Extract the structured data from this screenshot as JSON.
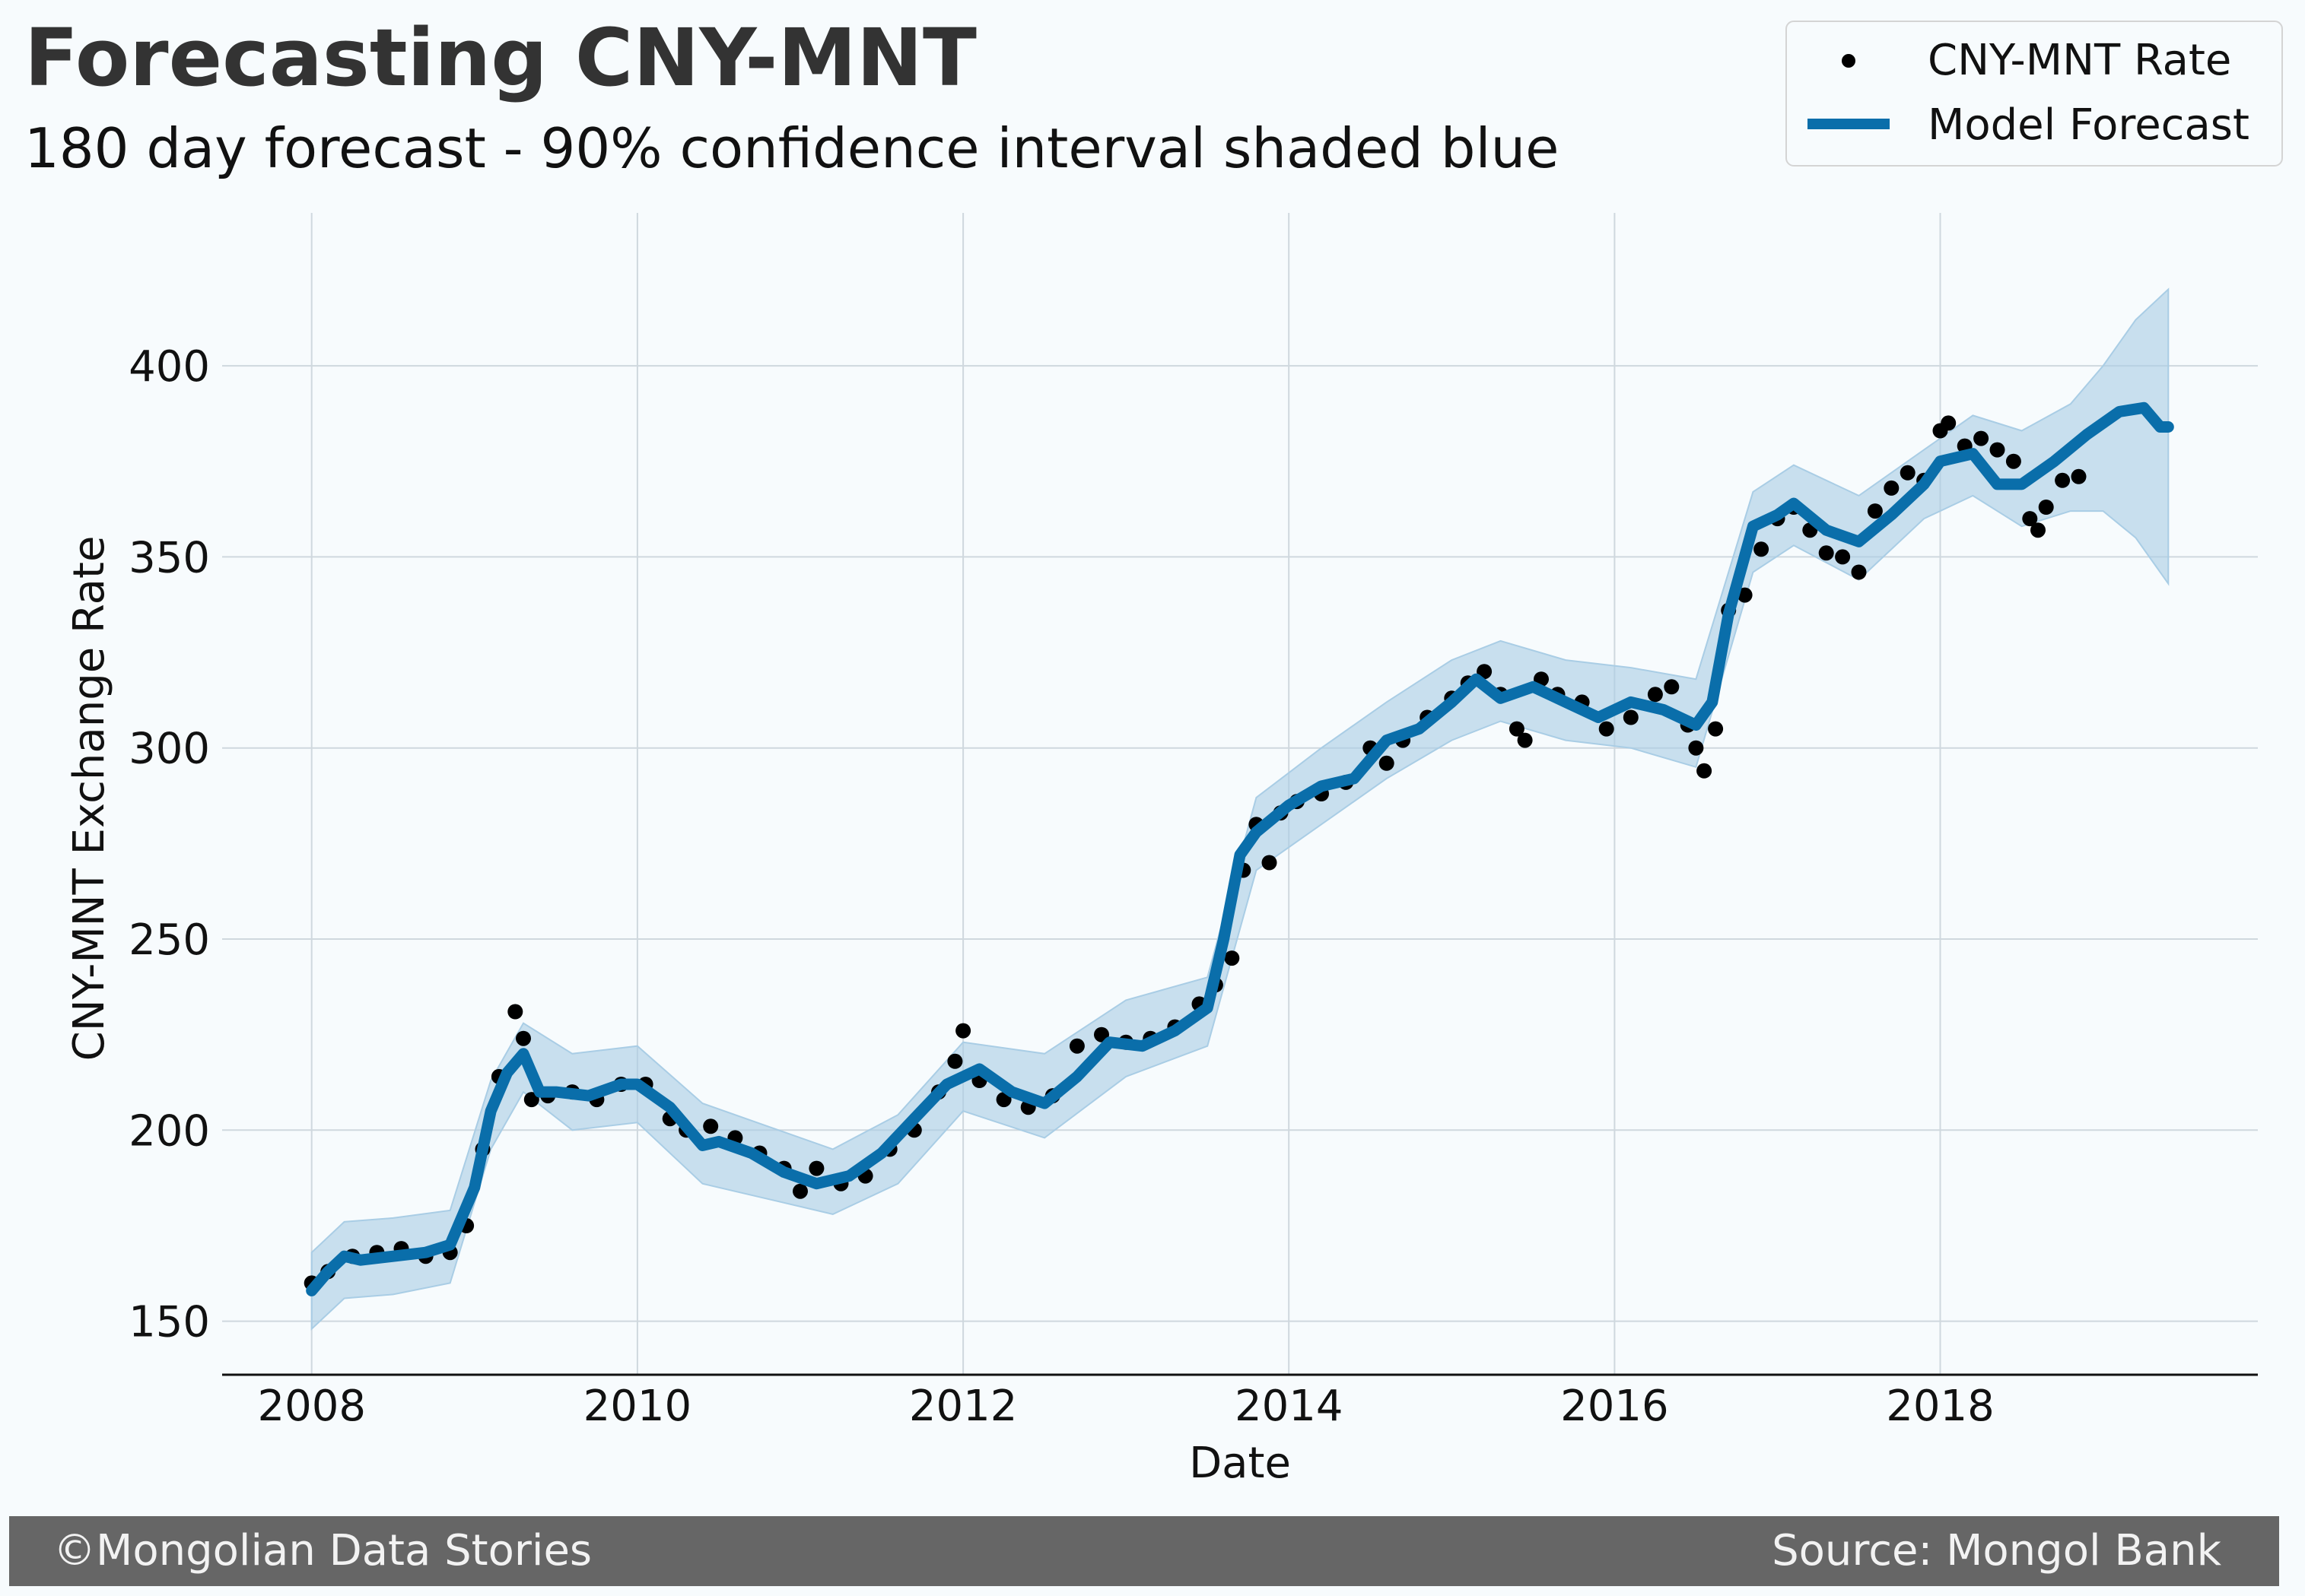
{
  "title": "Forecasting CNY-MNT",
  "subtitle": "180 day forecast - 90% confidence interval shaded blue",
  "footer": {
    "left": "©Mongolian Data Stories",
    "right": "Source: Mongol Bank"
  },
  "colors": {
    "background": "#f7fbfd",
    "forecast_line": "#0a6eaa",
    "confidence_band": "#a9cde5",
    "actual_points": "#000000",
    "grid": "#cfd8de",
    "footer_bg": "#666666"
  },
  "chart_data": {
    "type": "line",
    "xlabel": "Date",
    "ylabel": "CNY-MNT Exchange Rate",
    "xlim": [
      2007.45,
      2019.95
    ],
    "ylim": [
      136,
      440
    ],
    "x_ticks": [
      2008,
      2010,
      2012,
      2014,
      2016,
      2018
    ],
    "y_ticks": [
      150,
      200,
      250,
      300,
      350,
      400
    ],
    "grid": true,
    "legend_position": "top-right",
    "legend": [
      {
        "label": "CNY-MNT Rate",
        "marker": "dot"
      },
      {
        "label": "Model Forecast",
        "marker": "line"
      }
    ],
    "series": [
      {
        "name": "Model Forecast",
        "role": "forecast",
        "x": [
          2008.0,
          2008.1,
          2008.2,
          2008.3,
          2008.5,
          2008.7,
          2008.85,
          2009.0,
          2009.1,
          2009.2,
          2009.3,
          2009.4,
          2009.5,
          2009.7,
          2009.9,
          2010.0,
          2010.2,
          2010.4,
          2010.5,
          2010.7,
          2010.9,
          2011.1,
          2011.3,
          2011.5,
          2011.7,
          2011.9,
          2012.1,
          2012.3,
          2012.5,
          2012.7,
          2012.9,
          2013.1,
          2013.3,
          2013.5,
          2013.6,
          2013.7,
          2013.8,
          2014.0,
          2014.2,
          2014.4,
          2014.6,
          2014.8,
          2015.0,
          2015.15,
          2015.3,
          2015.5,
          2015.7,
          2015.9,
          2016.1,
          2016.3,
          2016.5,
          2016.6,
          2016.7,
          2016.85,
          2017.0,
          2017.1,
          2017.3,
          2017.5,
          2017.7,
          2017.9,
          2018.0,
          2018.2,
          2018.35,
          2018.5,
          2018.7,
          2018.9,
          2019.1,
          2019.25,
          2019.35,
          2019.4
        ],
        "values": [
          158,
          163,
          167,
          166,
          167,
          168,
          170,
          185,
          205,
          215,
          220,
          210,
          210,
          209,
          212,
          212,
          206,
          196,
          197,
          194,
          189,
          186,
          188,
          194,
          203,
          212,
          216,
          210,
          207,
          214,
          223,
          222,
          226,
          232,
          250,
          272,
          278,
          285,
          290,
          292,
          302,
          305,
          312,
          318,
          313,
          316,
          312,
          308,
          312,
          310,
          306,
          312,
          335,
          358,
          361,
          364,
          357,
          354,
          361,
          369,
          375,
          377,
          369,
          369,
          375,
          382,
          388,
          389,
          384,
          384
        ]
      },
      {
        "name": "90% confidence interval",
        "role": "band",
        "x": [
          2008.0,
          2008.2,
          2008.5,
          2008.85,
          2009.1,
          2009.3,
          2009.6,
          2010.0,
          2010.4,
          2010.8,
          2011.2,
          2011.6,
          2012.0,
          2012.5,
          2013.0,
          2013.5,
          2013.8,
          2014.2,
          2014.6,
          2015.0,
          2015.3,
          2015.7,
          2016.1,
          2016.5,
          2016.85,
          2017.1,
          2017.5,
          2017.9,
          2018.2,
          2018.5,
          2018.8,
          2019.0,
          2019.2,
          2019.4
        ],
        "upper": [
          168,
          176,
          177,
          179,
          213,
          228,
          220,
          222,
          207,
          201,
          195,
          204,
          223,
          220,
          234,
          240,
          287,
          300,
          312,
          323,
          328,
          323,
          321,
          318,
          367,
          374,
          366,
          378,
          387,
          383,
          390,
          400,
          412,
          420
        ],
        "lower": [
          148,
          156,
          157,
          160,
          195,
          210,
          200,
          202,
          186,
          182,
          178,
          186,
          205,
          198,
          214,
          222,
          268,
          280,
          292,
          302,
          307,
          302,
          300,
          295,
          346,
          353,
          344,
          360,
          366,
          358,
          362,
          362,
          355,
          343
        ]
      },
      {
        "name": "CNY-MNT Rate",
        "role": "actual",
        "x": [
          2008.0,
          2008.1,
          2008.25,
          2008.4,
          2008.55,
          2008.7,
          2008.85,
          2008.95,
          2009.05,
          2009.15,
          2009.25,
          2009.3,
          2009.35,
          2009.45,
          2009.6,
          2009.75,
          2009.9,
          2010.05,
          2010.2,
          2010.3,
          2010.45,
          2010.6,
          2010.75,
          2010.9,
          2011.0,
          2011.1,
          2011.25,
          2011.4,
          2011.55,
          2011.7,
          2011.85,
          2011.95,
          2012.0,
          2012.1,
          2012.25,
          2012.4,
          2012.55,
          2012.7,
          2012.85,
          2013.0,
          2013.15,
          2013.3,
          2013.45,
          2013.55,
          2013.65,
          2013.72,
          2013.8,
          2013.88,
          2013.95,
          2014.05,
          2014.2,
          2014.35,
          2014.5,
          2014.6,
          2014.7,
          2014.85,
          2015.0,
          2015.1,
          2015.2,
          2015.3,
          2015.4,
          2015.45,
          2015.55,
          2015.65,
          2015.8,
          2015.95,
          2016.1,
          2016.25,
          2016.35,
          2016.45,
          2016.5,
          2016.55,
          2016.62,
          2016.7,
          2016.8,
          2016.9,
          2017.0,
          2017.1,
          2017.2,
          2017.3,
          2017.4,
          2017.5,
          2017.6,
          2017.7,
          2017.8,
          2017.9,
          2018.0,
          2018.05,
          2018.15,
          2018.25,
          2018.35,
          2018.45,
          2018.55,
          2018.6,
          2018.65,
          2018.75,
          2018.85
        ],
        "values": [
          160,
          163,
          167,
          168,
          169,
          167,
          168,
          175,
          195,
          214,
          231,
          224,
          208,
          209,
          210,
          208,
          212,
          212,
          203,
          200,
          201,
          198,
          194,
          190,
          184,
          190,
          186,
          188,
          195,
          200,
          210,
          218,
          226,
          213,
          208,
          206,
          209,
          222,
          225,
          223,
          224,
          227,
          233,
          238,
          245,
          268,
          280,
          270,
          283,
          286,
          288,
          291,
          300,
          296,
          302,
          308,
          313,
          317,
          320,
          314,
          305,
          302,
          318,
          314,
          312,
          305,
          308,
          314,
          316,
          306,
          300,
          294,
          305,
          336,
          340,
          352,
          360,
          363,
          357,
          351,
          350,
          346,
          362,
          368,
          372,
          370,
          383,
          385,
          379,
          381,
          378,
          375,
          360,
          357,
          363,
          370,
          371
        ]
      }
    ]
  }
}
